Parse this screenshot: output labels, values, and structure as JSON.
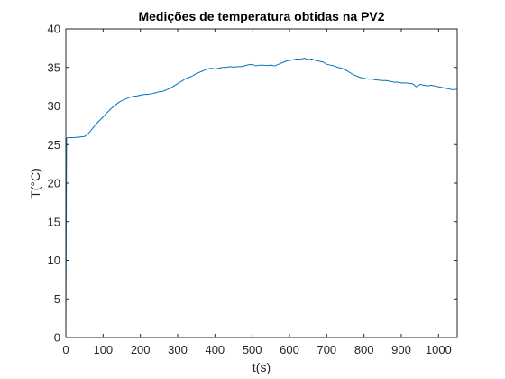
{
  "chart_data": {
    "type": "line",
    "title": "Medições de temperatura obtidas na PV2",
    "xlabel": "t(s)",
    "ylabel": "T(°C)",
    "xlim": [
      0,
      1050
    ],
    "ylim": [
      0,
      40
    ],
    "xticks": [
      0,
      100,
      200,
      300,
      400,
      500,
      600,
      700,
      800,
      900,
      1000
    ],
    "yticks": [
      0,
      5,
      10,
      15,
      20,
      25,
      30,
      35,
      40
    ],
    "grid": false,
    "series_color": "#0072BD",
    "series": [
      {
        "x": [
          0,
          2,
          5,
          10,
          20,
          30,
          40,
          50,
          55,
          60,
          65,
          70,
          75,
          80,
          90,
          100,
          110,
          120,
          130,
          140,
          150,
          160,
          170,
          180,
          190,
          200,
          210,
          220,
          230,
          240,
          250,
          260,
          270,
          280,
          290,
          300,
          310,
          320,
          330,
          340,
          350,
          360,
          370,
          380,
          390,
          400,
          410,
          420,
          430,
          440,
          450,
          460,
          470,
          480,
          490,
          500,
          510,
          520,
          530,
          540,
          550,
          560,
          570,
          580,
          590,
          600,
          610,
          620,
          630,
          640,
          650,
          660,
          670,
          680,
          690,
          700,
          710,
          720,
          730,
          740,
          750,
          760,
          770,
          780,
          790,
          800,
          810,
          820,
          830,
          840,
          850,
          860,
          870,
          880,
          890,
          900,
          910,
          920,
          930,
          935,
          940,
          950,
          960,
          970,
          980,
          990,
          1000,
          1010,
          1020,
          1030,
          1040,
          1050
        ],
        "y": [
          0,
          25.8,
          25.9,
          25.9,
          25.9,
          25.95,
          26.0,
          26.05,
          26.2,
          26.4,
          26.7,
          27.0,
          27.3,
          27.6,
          28.1,
          28.6,
          29.1,
          29.6,
          30.0,
          30.4,
          30.7,
          30.9,
          31.1,
          31.25,
          31.3,
          31.4,
          31.5,
          31.5,
          31.6,
          31.7,
          31.85,
          31.9,
          32.1,
          32.3,
          32.6,
          32.9,
          33.2,
          33.5,
          33.7,
          33.9,
          34.2,
          34.4,
          34.6,
          34.8,
          34.9,
          34.8,
          34.9,
          35.0,
          35.0,
          35.1,
          35.05,
          35.1,
          35.1,
          35.2,
          35.35,
          35.4,
          35.2,
          35.3,
          35.3,
          35.25,
          35.3,
          35.2,
          35.4,
          35.6,
          35.8,
          35.9,
          36.0,
          36.1,
          36.05,
          36.2,
          36.0,
          36.1,
          35.9,
          35.8,
          35.7,
          35.4,
          35.3,
          35.2,
          35.0,
          34.9,
          34.7,
          34.4,
          34.1,
          33.9,
          33.7,
          33.6,
          33.5,
          33.5,
          33.4,
          33.35,
          33.3,
          33.3,
          33.2,
          33.1,
          33.1,
          33.0,
          33.0,
          32.95,
          32.9,
          32.7,
          32.5,
          32.8,
          32.7,
          32.6,
          32.7,
          32.6,
          32.5,
          32.4,
          32.3,
          32.2,
          32.1,
          32.2
        ]
      }
    ]
  }
}
